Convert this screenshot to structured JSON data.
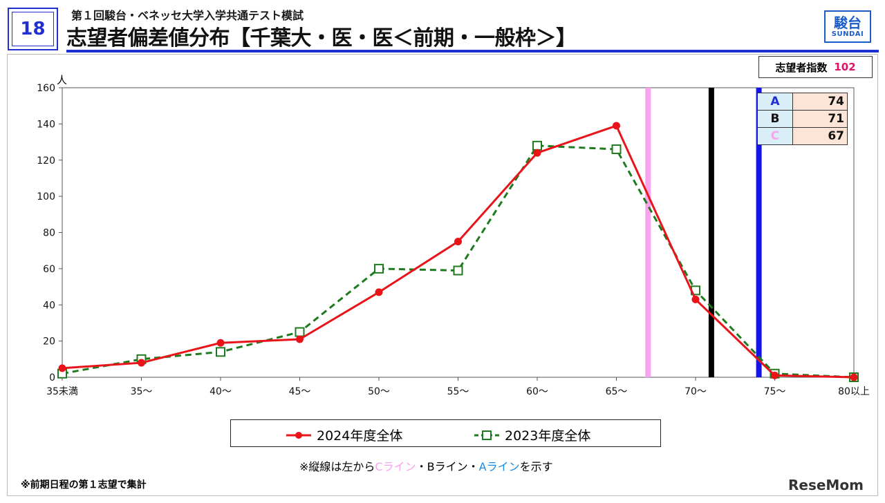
{
  "header": {
    "page_number": "18",
    "subtitle": "第１回駿台・ベネッセ大学入学共通テスト模試",
    "title": "志望者偏差値分布【千葉大・医・医＜前期・一般枠＞】",
    "logo_jp": "駿台",
    "logo_en": "SUNDAI"
  },
  "index_box": {
    "label": "志望者指数",
    "value": "102"
  },
  "abc_table": [
    {
      "key": "A",
      "value": "74",
      "color": "#1f2fd1"
    },
    {
      "key": "B",
      "value": "71",
      "color": "#111111"
    },
    {
      "key": "C",
      "value": "67",
      "color": "#f7a3ee"
    }
  ],
  "note": {
    "prefix": "※縦線は左から",
    "c_line": "Cライン",
    "sep1": "・",
    "b_line": "Bライン",
    "sep2": "・",
    "a_line": "Aライン",
    "suffix": "を示す"
  },
  "footnote": "※前期日程の第１志望で集計",
  "watermark": "ReseMom",
  "chart_data": {
    "type": "line",
    "categories": [
      "35未満",
      "35～",
      "40～",
      "45～",
      "50～",
      "55～",
      "60～",
      "65～",
      "70～",
      "75～",
      "80以上"
    ],
    "series": [
      {
        "name": "2024年度全体",
        "color": "#e8141a",
        "marker": "filled-circle",
        "line": "solid",
        "values": [
          5,
          8,
          19,
          21,
          47,
          75,
          124,
          139,
          43,
          1,
          0
        ]
      },
      {
        "name": "2023年度全体",
        "color": "#1e7a1e",
        "marker": "open-square",
        "line": "dashed",
        "values": [
          2,
          10,
          14,
          25,
          60,
          59,
          128,
          126,
          48,
          2,
          0
        ]
      }
    ],
    "ylabel": "人",
    "ylim": [
      0,
      160
    ],
    "yticks": [
      0,
      20,
      40,
      60,
      80,
      100,
      120,
      140,
      160
    ],
    "vlines": [
      {
        "label": "C",
        "x_value": 67,
        "color": "#f7a3ee"
      },
      {
        "label": "B",
        "x_value": 71,
        "color": "#000000"
      },
      {
        "label": "A",
        "x_value": 74,
        "color": "#1414e6"
      }
    ],
    "grid": false,
    "legend_placement": "bottom"
  }
}
